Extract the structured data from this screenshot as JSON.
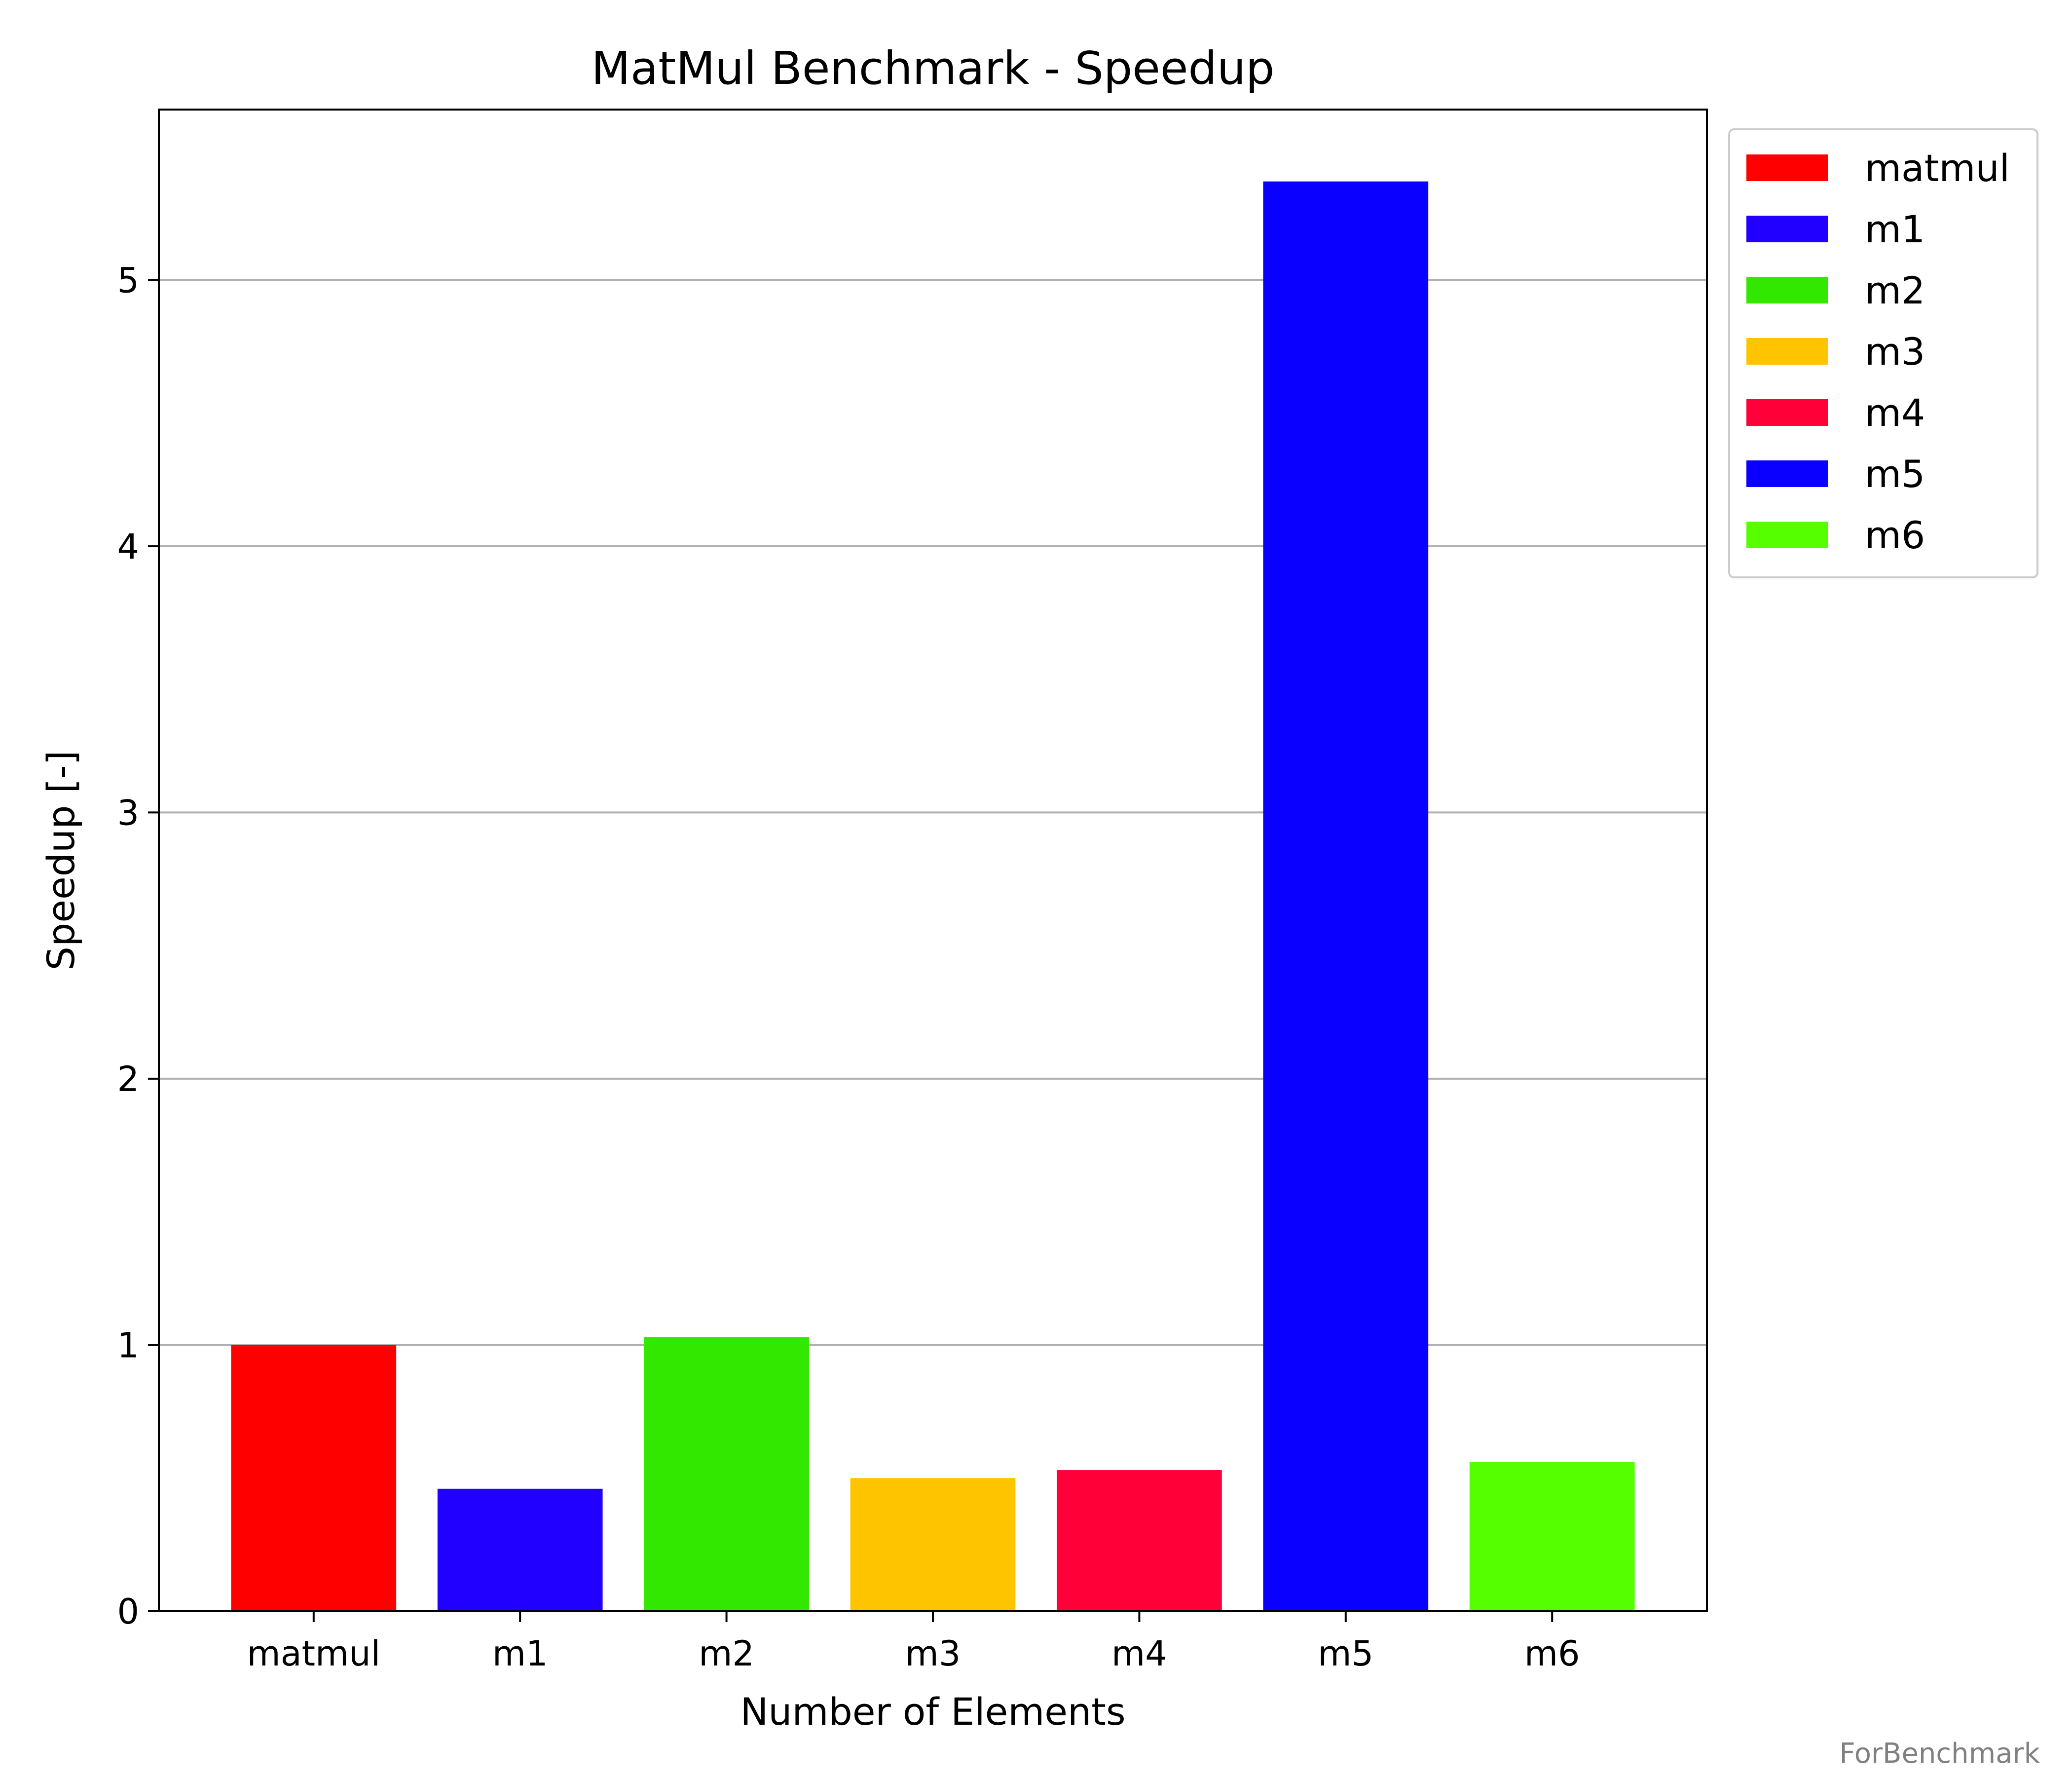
{
  "chart_data": {
    "type": "bar",
    "title": "MatMul Benchmark - Speedup",
    "xlabel": "Number of Elements",
    "ylabel": "Speedup [-]",
    "categories": [
      "matmul",
      "m1",
      "m2",
      "m3",
      "m4",
      "m5",
      "m6"
    ],
    "values": [
      1.0,
      0.46,
      1.03,
      0.5,
      0.53,
      5.37,
      0.56
    ],
    "colors": [
      "#ff0000",
      "#2200ff",
      "#33e800",
      "#ffc400",
      "#ff0038",
      "#0a00ff",
      "#55ff00"
    ],
    "ylim": [
      0,
      5.64
    ],
    "yticks": [
      "0",
      "1",
      "2",
      "3",
      "4",
      "5"
    ],
    "grid": "y",
    "legend": {
      "placement": "outside upper right",
      "entries": [
        "matmul",
        "m1",
        "m2",
        "m3",
        "m4",
        "m5",
        "m6"
      ]
    }
  },
  "watermark": "ForBenchmark"
}
